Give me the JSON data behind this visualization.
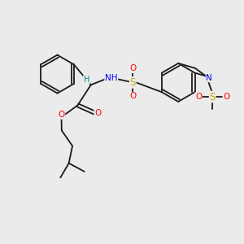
{
  "background_color": "#ebebeb",
  "figsize": [
    3.0,
    3.0
  ],
  "dpi": 100,
  "bond_color": "#1a1a1a",
  "bond_lw": 1.3,
  "atom_colors": {
    "O": "#ff0000",
    "N": "#0000ff",
    "S": "#ccaa00",
    "H_label": "#008888",
    "C": "#1a1a1a"
  },
  "font_size": 7.5
}
